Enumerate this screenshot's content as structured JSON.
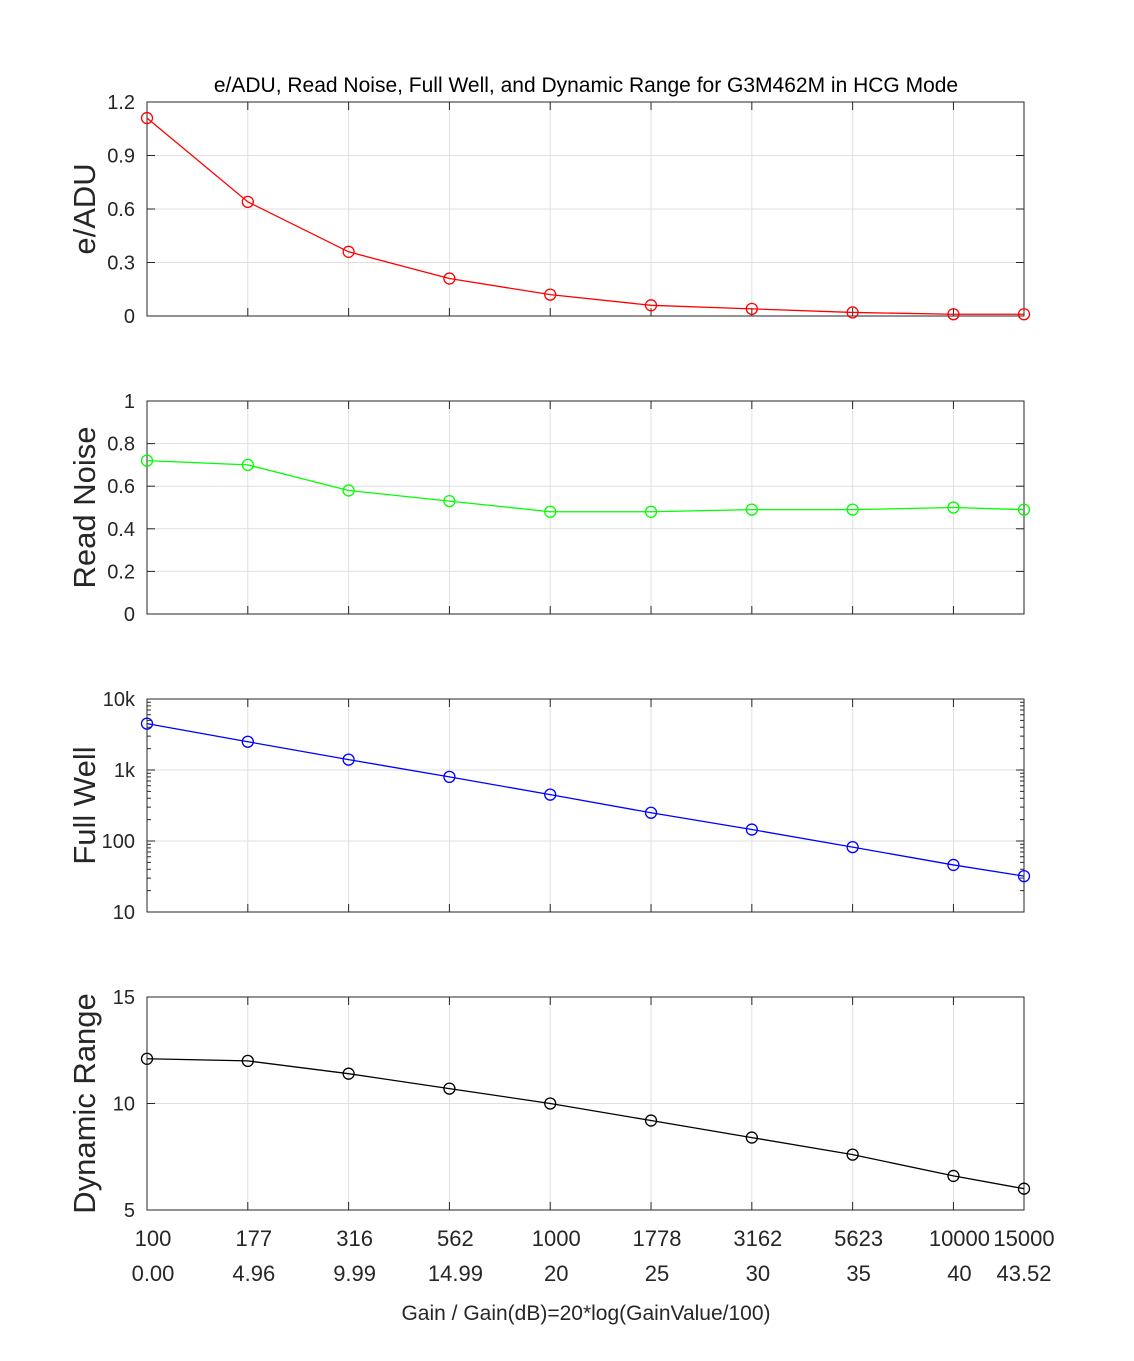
{
  "chart_data": {
    "type": "line",
    "title": "e/ADU, Read Noise, Full Well, and Dynamic Range for G3M462M in HCG Mode",
    "xlabel": "Gain / Gain(dB)=20*log(GainValue/100)",
    "categories": [
      "100",
      "177",
      "316",
      "562",
      "1000",
      "1778",
      "3162",
      "5623",
      "10000",
      "15000"
    ],
    "categories_db": [
      "0.00",
      "4.96",
      "9.99",
      "14.99",
      "20",
      "25",
      "30",
      "35",
      "40",
      "43.52"
    ],
    "x": [
      0,
      1,
      2,
      3,
      4,
      5,
      6,
      7,
      8,
      8.7
    ],
    "panels": [
      {
        "name": "e/ADU",
        "ylabel": "e/ADU",
        "color": "#ff0000",
        "scale": "linear",
        "ylim": [
          0,
          1.2
        ],
        "yticks": [
          0,
          0.3,
          0.6,
          0.9,
          1.2
        ],
        "yticklabels": [
          "0",
          "0.3",
          "0.6",
          "0.9",
          "1.2"
        ],
        "values": [
          1.11,
          0.64,
          0.36,
          0.21,
          0.12,
          0.06,
          0.04,
          0.02,
          0.01,
          0.01
        ]
      },
      {
        "name": "Read Noise",
        "ylabel": "Read Noise",
        "color": "#00ff00",
        "scale": "linear",
        "ylim": [
          0,
          1
        ],
        "yticks": [
          0,
          0.2,
          0.4,
          0.6,
          0.8,
          1
        ],
        "yticklabels": [
          "0",
          "0.2",
          "0.4",
          "0.6",
          "0.8",
          "1"
        ],
        "values": [
          0.72,
          0.7,
          0.58,
          0.53,
          0.48,
          0.48,
          0.49,
          0.49,
          0.5,
          0.49
        ]
      },
      {
        "name": "Full Well",
        "ylabel": "Full Well",
        "color": "#0000ff",
        "scale": "log",
        "ylim": [
          10,
          10000
        ],
        "yticks": [
          10,
          100,
          1000,
          10000
        ],
        "yticklabels": [
          "10",
          "100",
          "1k",
          "10k"
        ],
        "values": [
          4500,
          2500,
          1400,
          800,
          450,
          250,
          145,
          82,
          46,
          32
        ]
      },
      {
        "name": "Dynamic Range",
        "ylabel": "Dynamic Range",
        "color": "#000000",
        "scale": "linear",
        "ylim": [
          5,
          15
        ],
        "yticks": [
          5,
          10,
          15
        ],
        "yticklabels": [
          "5",
          "10",
          "15"
        ],
        "values": [
          12.1,
          12.0,
          11.4,
          10.7,
          10.0,
          9.2,
          8.4,
          7.6,
          6.6,
          6.0
        ]
      }
    ],
    "grid": true,
    "marker": "circle"
  }
}
